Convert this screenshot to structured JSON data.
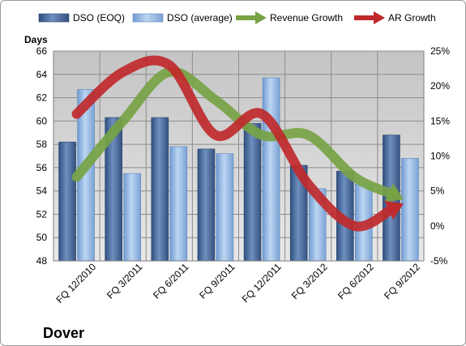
{
  "chart_data": {
    "type": "bar",
    "title": "Dover",
    "ylabel": "Days",
    "categories": [
      "FQ 12/2010",
      "FQ 3/2011",
      "FQ 6/2011",
      "FQ 9/2011",
      "FQ 12/2011",
      "FQ 3/2012",
      "FQ 6/2012",
      "FQ 9/2012"
    ],
    "y_left": {
      "min": 48,
      "max": 66,
      "ticks": [
        48,
        50,
        52,
        54,
        56,
        58,
        60,
        62,
        64,
        66
      ]
    },
    "y_right": {
      "min": -5,
      "max": 25,
      "ticks": [
        -5,
        0,
        5,
        10,
        15,
        20,
        25
      ],
      "ticklabels": [
        "-5%",
        "0%",
        "5%",
        "10%",
        "15%",
        "20%",
        "25%"
      ]
    },
    "grid": true,
    "legend_position": "top",
    "series": [
      {
        "name": "DSO (EOQ)",
        "kind": "bar",
        "axis": "left",
        "color": "#4e6fa5",
        "values": [
          58.2,
          60.3,
          60.3,
          57.6,
          59.8,
          56.2,
          55.7,
          58.8
        ]
      },
      {
        "name": "DSO (average)",
        "kind": "bar",
        "axis": "left",
        "color": "#8db3e2",
        "values": [
          62.7,
          55.5,
          57.8,
          57.2,
          63.7,
          54.2,
          54.6,
          56.8
        ]
      },
      {
        "name": "Revenue Growth",
        "kind": "arrow-line",
        "axis": "right",
        "color": "#77a345",
        "values": [
          7,
          15,
          22,
          18,
          13,
          13,
          7,
          4
        ]
      },
      {
        "name": "AR Growth",
        "kind": "arrow-line",
        "axis": "right",
        "color": "#c0292b",
        "values": [
          16,
          22,
          23,
          13,
          16,
          6,
          0,
          3
        ]
      }
    ]
  }
}
